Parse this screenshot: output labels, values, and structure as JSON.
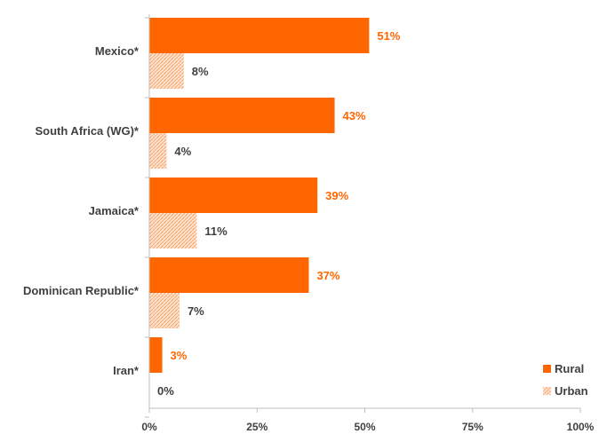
{
  "chart_data": {
    "type": "bar",
    "orientation": "horizontal",
    "categories": [
      "Mexico*",
      "South Africa (WG)*",
      "Jamaica*",
      "Dominican Republic*",
      "Iran*"
    ],
    "series": [
      {
        "name": "Rural",
        "values": [
          51,
          43,
          39,
          37,
          3
        ],
        "labels": [
          "51%",
          "43%",
          "39%",
          "37%",
          "3%"
        ],
        "color": "#ff6600",
        "label_color": "#ff6600",
        "pattern": "solid"
      },
      {
        "name": "Urban",
        "values": [
          8,
          4,
          11,
          7,
          0
        ],
        "labels": [
          "8%",
          "4%",
          "11%",
          "7%",
          "0%"
        ],
        "color": "#fbc9a3",
        "label_color": "#404040",
        "pattern": "hatched"
      }
    ],
    "xlim": [
      0,
      100
    ],
    "x_ticks": [
      "0%",
      "25%",
      "50%",
      "75%",
      "100%"
    ],
    "grid": false,
    "legend_position": "bottom-right",
    "title": "",
    "xlabel": "",
    "ylabel": ""
  }
}
